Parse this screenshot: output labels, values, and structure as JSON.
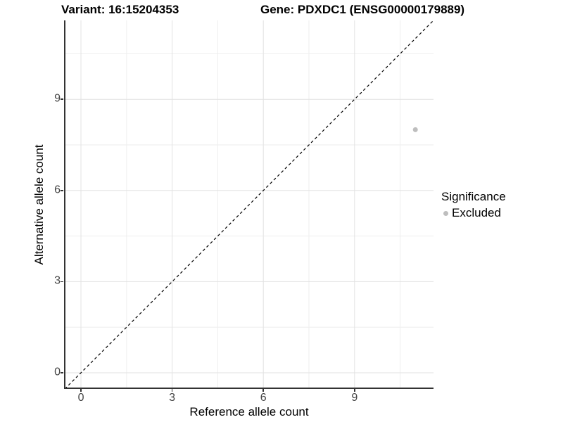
{
  "figure": {
    "titles": {
      "variant": "Variant: 16:15204353",
      "gene": "Gene: PDXDC1 (ENSG00000179889)"
    }
  },
  "axes": {
    "x": {
      "label": "Reference allele count"
    },
    "y": {
      "label": "Alternative allele count"
    }
  },
  "legend": {
    "title": "Significance",
    "items": [
      {
        "label": "Excluded",
        "color": "#bebebe",
        "marker": "circle"
      }
    ]
  },
  "colors": {
    "background": "#ffffff",
    "grid_major": "#e2e2e2",
    "grid_minor": "#eeeeee",
    "axis_line": "#333333",
    "tick_label": "#444444",
    "identity_line": "#000000",
    "point": "#bebebe"
  },
  "chart_data": {
    "type": "scatter",
    "title": "Variant: 16:15204353 | Gene: PDXDC1 (ENSG00000179889)",
    "xlabel": "Reference allele count",
    "ylabel": "Alternative allele count",
    "xlim": [
      -0.556,
      11.597
    ],
    "ylim": [
      -0.532,
      11.597
    ],
    "x_ticks": [
      0,
      3,
      6,
      9
    ],
    "y_ticks": [
      0,
      3,
      6,
      9
    ],
    "x_minor_ticks": [
      1.5,
      4.5,
      7.5,
      10.5
    ],
    "y_minor_ticks": [
      1.5,
      4.5,
      7.5,
      10.5
    ],
    "grid": "major_and_minor",
    "legend_position": "right",
    "reference_line": {
      "equation": "y = x",
      "style": "dashed",
      "color": "#000000"
    },
    "series": [
      {
        "name": "Excluded",
        "color": "#bebebe",
        "points": [
          {
            "x": 11,
            "y": 8
          }
        ]
      }
    ]
  }
}
